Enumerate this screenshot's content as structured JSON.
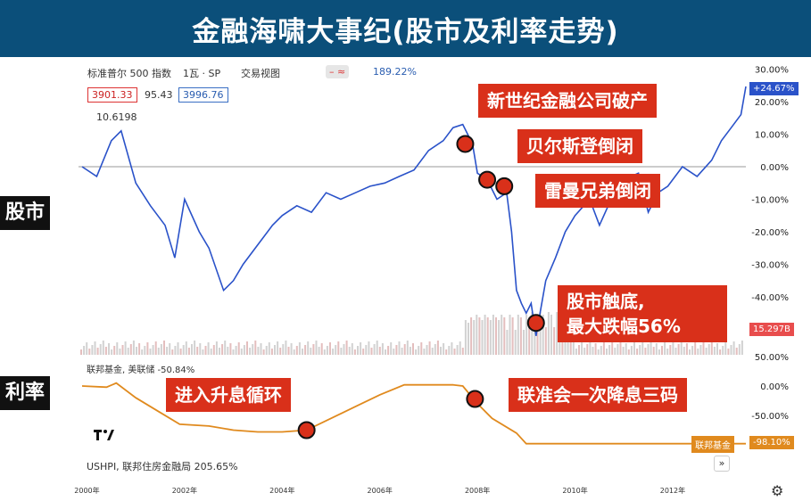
{
  "title": "金融海啸大事纪(股市及利率走势)",
  "side_labels": {
    "stock": "股市",
    "rate": "利率"
  },
  "header": {
    "symbol": "标准普尔 500 指数",
    "interval": "1瓦 · SP",
    "source": "交易视图",
    "change_pct": "189.22%",
    "box_red": "3901.33",
    "mid_value": "95.43",
    "box_blue": "3996.76",
    "low_label": "10.6198"
  },
  "rate_header": "联邦基金, 美联储 -50.84%",
  "bottom_label": "USHPI, 联邦住房金融局 205.65%",
  "badges": {
    "current_pct": "+24.67%",
    "volume": "15.297B",
    "fund_name": "联邦基金",
    "fund_pct": "-98.10%"
  },
  "annotations": {
    "a1": "新世纪金融公司破产",
    "a2": "贝尔斯登倒闭",
    "a3": "雷曼兄弟倒闭",
    "a4": "股市触底,\n最大跌幅56%",
    "a5": "进入升息循环",
    "a6": "联准会一次降息三码"
  },
  "colors": {
    "title_bg": "#0b4f7a",
    "stock_line": "#2a52c9",
    "rate_line": "#e08a1e",
    "annotation_bg": "#d9301a",
    "marker": "#d9301a"
  },
  "chart_data": [
    {
      "type": "line",
      "series": [
        {
          "name": "标准普尔 500 指数",
          "x": [
            1999.9,
            2000.2,
            2000.5,
            2000.7,
            2001.0,
            2001.3,
            2001.6,
            2001.8,
            2002.0,
            2002.3,
            2002.5,
            2002.8,
            2003.0,
            2003.2,
            2003.5,
            2003.8,
            2004.0,
            2004.3,
            2004.6,
            2004.9,
            2005.2,
            2005.5,
            2005.8,
            2006.1,
            2006.4,
            2006.7,
            2007.0,
            2007.3,
            2007.5,
            2007.7,
            2007.9,
            2008.0,
            2008.2,
            2008.4,
            2008.6,
            2008.7,
            2008.8,
            2008.9,
            2009.0,
            2009.1,
            2009.2,
            2009.4,
            2009.6,
            2009.8,
            2010.0,
            2010.3,
            2010.5,
            2010.8,
            2011.0,
            2011.3,
            2011.5,
            2011.7,
            2011.9,
            2012.2,
            2012.5,
            2012.8,
            2013.0,
            2013.2,
            2013.4,
            2013.5
          ],
          "y": [
            0,
            -3,
            8,
            11,
            -5,
            -12,
            -18,
            -28,
            -10,
            -20,
            -25,
            -38,
            -35,
            -30,
            -24,
            -18,
            -15,
            -12,
            -14,
            -8,
            -10,
            -8,
            -6,
            -5,
            -3,
            -1,
            5,
            8,
            12,
            13,
            7,
            -2,
            -4,
            -10,
            -8,
            -20,
            -38,
            -42,
            -45,
            -42,
            -52,
            -35,
            -28,
            -20,
            -15,
            -10,
            -18,
            -8,
            -4,
            -2,
            -14,
            -8,
            -6,
            0,
            -3,
            2,
            8,
            12,
            16,
            24.67
          ]
        }
      ],
      "ylim": [
        -55,
        30
      ],
      "yticks": [
        "30.00%",
        "20.00%",
        "10.00%",
        "0.00%",
        "-10.00%",
        "-20.00%",
        "-30.00%",
        "-40.00%"
      ],
      "xticks": [
        "2000年",
        "2002年",
        "2004年",
        "2006年",
        "2008年",
        "2010年",
        "2012年"
      ]
    },
    {
      "type": "line",
      "series": [
        {
          "name": "联邦基金",
          "x": [
            1999.9,
            2000.4,
            2000.6,
            2001.0,
            2001.5,
            2001.9,
            2002.5,
            2003.0,
            2003.5,
            2004.0,
            2004.5,
            2005.0,
            2005.5,
            2006.0,
            2006.5,
            2007.0,
            2007.5,
            2007.7,
            2008.0,
            2008.3,
            2008.8,
            2009.0,
            2010.0,
            2011.0,
            2012.0,
            2013.0,
            2013.5
          ],
          "y": [
            0,
            -2,
            5,
            -20,
            -45,
            -65,
            -68,
            -75,
            -78,
            -78,
            -75,
            -55,
            -35,
            -15,
            2,
            2,
            2,
            0,
            -30,
            -55,
            -80,
            -98,
            -98,
            -98,
            -98,
            -98,
            -98.1
          ]
        }
      ],
      "ylim": [
        -100,
        50
      ],
      "yticks": [
        "50.00%",
        "0.00%",
        "-50.00%"
      ]
    }
  ]
}
